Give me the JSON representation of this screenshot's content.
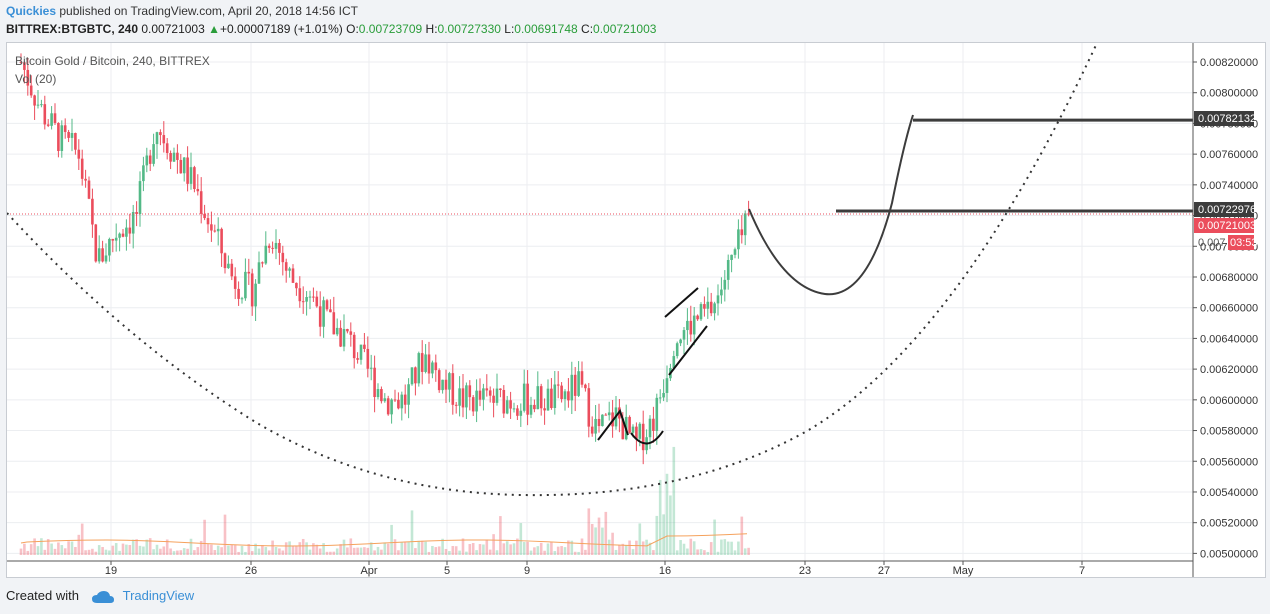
{
  "header": {
    "author": "Quickies",
    "published_text": " published on TradingView.com, April 20, 2018 14:56 ICT",
    "symbol_line": "BITTREX:BTGBTC, 240",
    "last_price": "0.00721003",
    "change": "+0.00007189 (+1.01%)",
    "open_label": "O:",
    "open": "0.00723709",
    "high_label": "H:",
    "high": "0.00727330",
    "low_label": "L:",
    "low": "0.00691748",
    "close_label": "C:",
    "close": "0.00721003"
  },
  "legend": {
    "title": "Bitcoin Gold / Bitcoin, 240, BITTREX",
    "volume": "Vol (20)"
  },
  "price_tags": {
    "target": "0.00782132",
    "level": "0.00722976",
    "current": "0.00721003",
    "countdown_price": "0.007",
    "countdown": "03:53"
  },
  "footer": {
    "created_with": "Created with",
    "brand": "TradingView"
  },
  "colors": {
    "up": "#53b987",
    "down": "#eb4d5c",
    "tag_dark": "#3c3c3c",
    "tag_red": "#eb4d5c"
  },
  "chart_data": {
    "type": "candlestick",
    "title": "Bitcoin Gold / Bitcoin, 240, BITTREX",
    "y_ticks": [
      "0.00820000",
      "0.00800000",
      "0.00780000",
      "0.00760000",
      "0.00740000",
      "0.00720000",
      "0.00700000",
      "0.00680000",
      "0.00660000",
      "0.00640000",
      "0.00620000",
      "0.00600000",
      "0.00580000",
      "0.00560000",
      "0.00540000",
      "0.00520000",
      "0.00500000"
    ],
    "x_ticks": [
      "19",
      "26",
      "Apr",
      "5",
      "9",
      "16",
      "23",
      "27",
      "May",
      "7"
    ],
    "ylim": [
      0.0049,
      0.0083
    ],
    "close_series": [
      {
        "d": "Mar 17 00:00",
        "c": 0.0082
      },
      {
        "d": "Mar 17 12:00",
        "c": 0.0079
      },
      {
        "d": "Mar 18 00:00",
        "c": 0.0077
      },
      {
        "d": "Mar 18 12:00",
        "c": 0.0076
      },
      {
        "d": "Mar 19 00:00",
        "c": 0.0069
      },
      {
        "d": "Mar 19 12:00",
        "c": 0.0071
      },
      {
        "d": "Mar 20 00:00",
        "c": 0.0072
      },
      {
        "d": "Mar 20 12:00",
        "c": 0.0078
      },
      {
        "d": "Mar 21 00:00",
        "c": 0.0076
      },
      {
        "d": "Mar 22 00:00",
        "c": 0.0074
      },
      {
        "d": "Mar 23 00:00",
        "c": 0.0071
      },
      {
        "d": "Mar 24 00:00",
        "c": 0.0068
      },
      {
        "d": "Mar 25 00:00",
        "c": 0.0067
      },
      {
        "d": "Mar 26 00:00",
        "c": 0.0071
      },
      {
        "d": "Mar 27 00:00",
        "c": 0.0068
      },
      {
        "d": "Mar 28 00:00",
        "c": 0.0067
      },
      {
        "d": "Mar 29 00:00",
        "c": 0.0065
      },
      {
        "d": "Mar 30 00:00",
        "c": 0.0064
      },
      {
        "d": "Mar 31 00:00",
        "c": 0.0062
      },
      {
        "d": "Apr 1 00:00",
        "c": 0.006
      },
      {
        "d": "Apr 2 00:00",
        "c": 0.006
      },
      {
        "d": "Apr 3 00:00",
        "c": 0.0063
      },
      {
        "d": "Apr 4 00:00",
        "c": 0.0061
      },
      {
        "d": "Apr 5 00:00",
        "c": 0.006
      },
      {
        "d": "Apr 6 00:00",
        "c": 0.006
      },
      {
        "d": "Apr 7 00:00",
        "c": 0.006
      },
      {
        "d": "Apr 8 00:00",
        "c": 0.006
      },
      {
        "d": "Apr 9 00:00",
        "c": 0.006
      },
      {
        "d": "Apr 10 00:00",
        "c": 0.006
      },
      {
        "d": "Apr 11 00:00",
        "c": 0.0061
      },
      {
        "d": "Apr 12 00:00",
        "c": 0.0058
      },
      {
        "d": "Apr 13 00:00",
        "c": 0.0059
      },
      {
        "d": "Apr 14 00:00",
        "c": 0.0057
      },
      {
        "d": "Apr 15 00:00",
        "c": 0.0059
      },
      {
        "d": "Apr 16 00:00",
        "c": 0.0064
      },
      {
        "d": "Apr 17 00:00",
        "c": 0.0065
      },
      {
        "d": "Apr 18 00:00",
        "c": 0.0066
      },
      {
        "d": "Apr 19 00:00",
        "c": 0.0069
      },
      {
        "d": "Apr 20 00:00",
        "c": 0.0072
      }
    ],
    "horizontal_lines": [
      0.0072298,
      0.0078213
    ]
  }
}
